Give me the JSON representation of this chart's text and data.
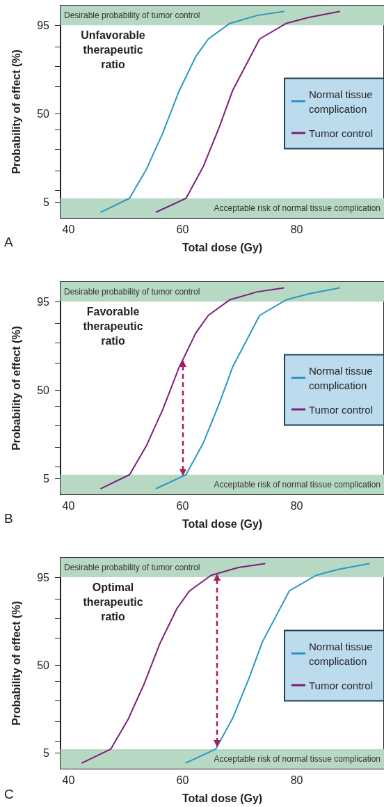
{
  "chart_data": [
    {
      "type": "line",
      "xlabel": "Total dose (Gy)",
      "ylabel": "Probability of effect (%)",
      "xlim": [
        38.6,
        95.3
      ],
      "ylim": [
        -3,
        105
      ],
      "xticks": [
        40,
        {
          "value": 50,
          "label": null
        },
        60,
        {
          "value": 70,
          "label": null
        },
        80,
        {
          "value": 90,
          "label": null
        }
      ],
      "yticks": [
        5,
        {
          "value": 11,
          "label": null
        },
        {
          "value": 21,
          "label": null
        },
        {
          "value": 32,
          "label": null
        },
        {
          "value": 42,
          "label": null
        },
        50,
        {
          "value": 64,
          "label": null
        },
        {
          "value": 74,
          "label": null
        },
        {
          "value": 84,
          "label": null
        },
        95
      ],
      "marker": "none",
      "line_style": "solid",
      "legend": "right",
      "bands": [
        {
          "axis": "y",
          "from": 95,
          "to": 105,
          "label": "Desirable probability of tumor control",
          "color": "#b7d9c3"
        },
        {
          "axis": "y",
          "from": -3,
          "to": 7,
          "label": "Acceptable risk of normal tissue complication",
          "color": "#b7d9c3"
        }
      ],
      "annotations": [
        "Unfavorable therapeutic ratio",
        "A"
      ],
      "series": [
        {
          "name": "Normal tissue complication",
          "color": "#2a97c2",
          "x": [
            45.7,
            50.7,
            53.7,
            55.4,
            56.5,
            59.3,
            62.3,
            64.5,
            68.3,
            73.1,
            77.7
          ],
          "values": [
            0,
            7,
            22,
            33,
            40,
            61,
            79,
            88,
            96,
            100,
            102
          ]
        },
        {
          "name": "Tumor control",
          "color": "#7e1d7a",
          "x": [
            55.4,
            60.6,
            63.6,
            66.4,
            68.8,
            73.5,
            78.2,
            82.1,
            87.5
          ],
          "values": [
            0,
            7,
            23,
            43,
            62,
            88,
            96,
            99,
            102
          ]
        }
      ]
    },
    {
      "type": "line",
      "xlabel": "Total dose (Gy)",
      "ylabel": "Probability of effect (%)",
      "xlim": [
        38.6,
        95.3
      ],
      "ylim": [
        -3,
        105
      ],
      "xticks": [
        40,
        {
          "value": 50,
          "label": null
        },
        60,
        {
          "value": 70,
          "label": null
        },
        80,
        {
          "value": 90,
          "label": null
        }
      ],
      "yticks": [
        5,
        {
          "value": 11,
          "label": null
        },
        {
          "value": 21,
          "label": null
        },
        {
          "value": 32,
          "label": null
        },
        {
          "value": 42,
          "label": null
        },
        50,
        {
          "value": 64,
          "label": null
        },
        {
          "value": 74,
          "label": null
        },
        {
          "value": 84,
          "label": null
        },
        95
      ],
      "marker": "none",
      "line_style": "solid",
      "legend": "right",
      "bands": [
        {
          "axis": "y",
          "from": 95,
          "to": 105,
          "label": "Desirable probability of tumor control",
          "color": "#b7d9c3"
        },
        {
          "axis": "y",
          "from": -3,
          "to": 7,
          "label": "Acceptable risk of normal tissue complication",
          "color": "#b7d9c3"
        }
      ],
      "ref_lines": [
        {
          "axis": "x",
          "value": 60,
          "color": "#a3205e",
          "line_style": "dashed"
        }
      ],
      "annotations": [
        "Favorable therapeutic ratio",
        "B"
      ],
      "series": [
        {
          "name": "Normal tissue complication",
          "color": "#2a97c2",
          "x": [
            55.4,
            60.6,
            63.6,
            66.4,
            68.8,
            73.5,
            78.2,
            82.1,
            87.5
          ],
          "values": [
            0,
            7,
            23,
            43,
            62,
            88,
            96,
            99,
            102
          ]
        },
        {
          "name": "Tumor control",
          "color": "#7e1d7a",
          "x": [
            45.7,
            50.7,
            53.7,
            55.4,
            56.5,
            59.3,
            62.3,
            64.5,
            68.3,
            73.1,
            77.7
          ],
          "values": [
            0,
            7,
            22,
            33,
            40,
            61,
            79,
            88,
            96,
            100,
            102
          ]
        }
      ]
    },
    {
      "type": "line",
      "xlabel": "Total dose (Gy)",
      "ylabel": "Probability of effect (%)",
      "xlim": [
        38.6,
        95.3
      ],
      "ylim": [
        -3,
        105
      ],
      "xticks": [
        40,
        {
          "value": 50,
          "label": null
        },
        60,
        {
          "value": 70,
          "label": null
        },
        80,
        {
          "value": 90,
          "label": null
        }
      ],
      "yticks": [
        5,
        {
          "value": 11,
          "label": null
        },
        {
          "value": 21,
          "label": null
        },
        {
          "value": 32,
          "label": null
        },
        {
          "value": 42,
          "label": null
        },
        50,
        {
          "value": 64,
          "label": null
        },
        {
          "value": 74,
          "label": null
        },
        {
          "value": 84,
          "label": null
        },
        95
      ],
      "marker": "none",
      "line_style": "solid",
      "legend": "right",
      "bands": [
        {
          "axis": "y",
          "from": 95,
          "to": 105,
          "label": "Desirable probability of tumor control",
          "color": "#b7d9c3"
        },
        {
          "axis": "y",
          "from": -3,
          "to": 7,
          "label": "Acceptable risk of normal tissue complication",
          "color": "#b7d9c3"
        }
      ],
      "ref_lines": [
        {
          "axis": "x",
          "value": 66,
          "color": "#a3205e",
          "line_style": "dashed"
        }
      ],
      "annotations": [
        "Optimal therapeutic ratio",
        "C"
      ],
      "series": [
        {
          "name": "Normal tissue complication",
          "color": "#2a97c2",
          "x": [
            60.6,
            65.8,
            68.8,
            71.6,
            74,
            78.7,
            83.4,
            87.3,
            92.7
          ],
          "values": [
            0,
            7,
            23,
            43,
            62,
            88,
            96,
            99,
            102
          ]
        },
        {
          "name": "Tumor control",
          "color": "#7e1d7a",
          "x": [
            42.4,
            47.4,
            50.4,
            52.1,
            53.2,
            56,
            59,
            61.2,
            65,
            69.8,
            74.4
          ],
          "values": [
            0,
            7,
            22,
            33,
            40,
            61,
            79,
            88,
            96,
            100,
            102
          ]
        }
      ]
    }
  ]
}
